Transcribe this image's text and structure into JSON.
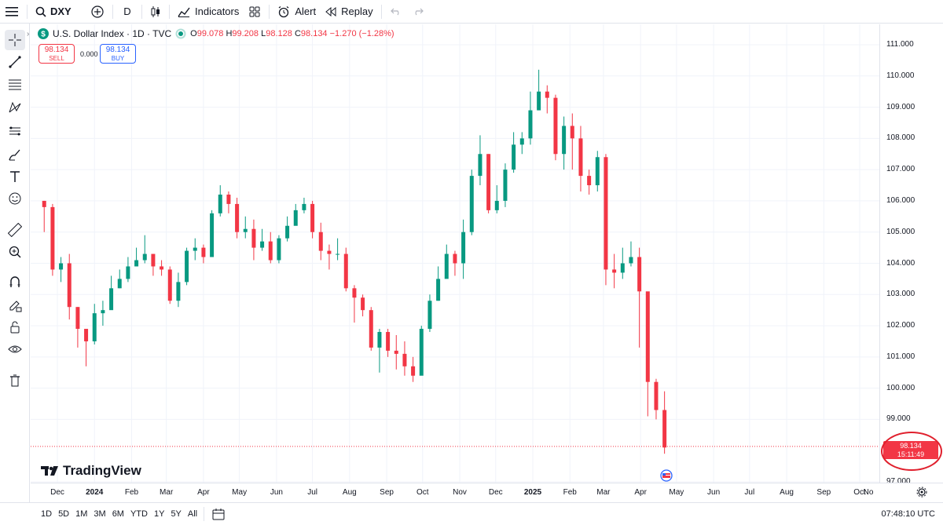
{
  "toolbar": {
    "symbol": "DXY",
    "interval": "D",
    "indicators_label": "Indicators",
    "alert_label": "Alert",
    "replay_label": "Replay"
  },
  "legend": {
    "title": "U.S. Dollar Index · 1D · TVC",
    "open_label": "O",
    "open": "99.078",
    "high_label": "H",
    "high": "99.208",
    "low_label": "L",
    "low": "98.128",
    "close_label": "C",
    "close": "98.134",
    "change": "−1.270 (−1.28%)"
  },
  "trade": {
    "sell_price": "98.134",
    "sell_label": "SELL",
    "spread": "0.000",
    "buy_price": "98.134",
    "buy_label": "BUY"
  },
  "watermark": "TradingView",
  "price_axis": [
    "111.000",
    "110.000",
    "109.000",
    "108.000",
    "107.000",
    "106.000",
    "105.000",
    "104.000",
    "103.000",
    "102.000",
    "101.000",
    "100.000",
    "99.000",
    "97.000"
  ],
  "last_price": {
    "price": "98.134",
    "countdown": "15:11:49"
  },
  "time_axis": [
    "Dec",
    "2024",
    "Feb",
    "Mar",
    "Apr",
    "May",
    "Jun",
    "Jul",
    "Aug",
    "Sep",
    "Oct",
    "Nov",
    "Dec",
    "2025",
    "Feb",
    "Mar",
    "Apr",
    "May",
    "Jun",
    "Jul",
    "Aug",
    "Sep",
    "Oct",
    "No"
  ],
  "ranges": [
    "1D",
    "5D",
    "1M",
    "3M",
    "6M",
    "YTD",
    "1Y",
    "5Y",
    "All"
  ],
  "clock": "07:48:10 UTC",
  "colors": {
    "up": "#089981",
    "down": "#f23645",
    "accent": "#2962ff"
  },
  "chart_data": {
    "type": "candlestick",
    "title": "U.S. Dollar Index · 1D · TVC",
    "xlabel": "",
    "ylabel": "",
    "ylim": [
      96.7,
      111.4
    ],
    "x": [
      "2023-11-20",
      "2023-11-27",
      "2023-12-04",
      "2023-12-11",
      "2023-12-18",
      "2023-12-25",
      "2024-01-01",
      "2024-01-08",
      "2024-01-15",
      "2024-01-22",
      "2024-01-29",
      "2024-02-05",
      "2024-02-12",
      "2024-02-19",
      "2024-02-26",
      "2024-03-04",
      "2024-03-11",
      "2024-03-18",
      "2024-03-25",
      "2024-04-01",
      "2024-04-08",
      "2024-04-15",
      "2024-04-22",
      "2024-04-29",
      "2024-05-06",
      "2024-05-13",
      "2024-05-20",
      "2024-05-27",
      "2024-06-03",
      "2024-06-10",
      "2024-06-17",
      "2024-06-24",
      "2024-07-01",
      "2024-07-08",
      "2024-07-15",
      "2024-07-22",
      "2024-07-29",
      "2024-08-05",
      "2024-08-12",
      "2024-08-19",
      "2024-08-26",
      "2024-09-02",
      "2024-09-09",
      "2024-09-16",
      "2024-09-23",
      "2024-09-30",
      "2024-10-07",
      "2024-10-14",
      "2024-10-21",
      "2024-10-28",
      "2024-11-04",
      "2024-11-11",
      "2024-11-18",
      "2024-11-25",
      "2024-12-02",
      "2024-12-09",
      "2024-12-16",
      "2024-12-23",
      "2024-12-30",
      "2025-01-06",
      "2025-01-13",
      "2025-01-20",
      "2025-01-27",
      "2025-02-03",
      "2025-02-10",
      "2025-02-17",
      "2025-02-24",
      "2025-03-03",
      "2025-03-10",
      "2025-03-17",
      "2025-03-24",
      "2025-03-31",
      "2025-04-07",
      "2025-04-14",
      "2025-04-21"
    ],
    "close": [
      105.8,
      103.8,
      104.0,
      102.6,
      101.9,
      101.5,
      102.4,
      102.5,
      103.2,
      103.5,
      103.9,
      104.1,
      104.3,
      103.9,
      103.8,
      102.8,
      103.4,
      104.4,
      104.5,
      104.2,
      105.6,
      106.2,
      105.9,
      105.0,
      105.1,
      104.5,
      104.7,
      104.1,
      104.8,
      105.2,
      105.7,
      105.9,
      105.0,
      104.4,
      104.3,
      104.3,
      103.2,
      102.9,
      102.5,
      101.3,
      101.8,
      101.2,
      101.1,
      100.7,
      100.4,
      101.9,
      102.8,
      103.5,
      104.3,
      104.0,
      105.0,
      106.8,
      107.5,
      105.7,
      106.0,
      107.0,
      107.8,
      108.0,
      108.9,
      109.5,
      109.3,
      107.5,
      108.4,
      108.0,
      106.8,
      106.5,
      107.4,
      103.8,
      103.7,
      104.0,
      104.2,
      103.1,
      100.2,
      99.3,
      98.1
    ],
    "high": [
      106.0,
      105.9,
      104.2,
      104.3,
      102.6,
      101.8,
      102.7,
      102.8,
      103.6,
      103.8,
      104.2,
      104.5,
      104.9,
      104.3,
      104.1,
      103.9,
      103.7,
      104.5,
      104.8,
      104.6,
      105.7,
      106.5,
      106.3,
      106.1,
      105.5,
      105.4,
      105.1,
      105.0,
      104.9,
      105.5,
      105.9,
      106.1,
      106.0,
      105.3,
      104.6,
      104.8,
      104.5,
      103.3,
      103.0,
      102.6,
      101.9,
      101.9,
      101.7,
      101.5,
      101.0,
      102.0,
      103.0,
      103.9,
      104.6,
      104.4,
      105.4,
      107.0,
      108.1,
      107.5,
      106.5,
      107.2,
      108.2,
      108.2,
      109.5,
      110.2,
      109.7,
      109.4,
      108.7,
      108.8,
      108.4,
      107.0,
      107.6,
      107.5,
      104.3,
      104.5,
      104.7,
      104.5,
      103.0,
      100.3,
      99.9
    ],
    "low": [
      105.0,
      103.6,
      103.4,
      102.2,
      101.3,
      100.7,
      101.4,
      102.0,
      102.9,
      103.2,
      103.4,
      103.9,
      104.0,
      103.6,
      103.6,
      102.7,
      102.6,
      103.3,
      104.1,
      104.0,
      104.3,
      105.5,
      105.6,
      104.8,
      104.8,
      104.1,
      104.4,
      104.0,
      104.0,
      104.7,
      105.3,
      105.6,
      104.8,
      104.1,
      103.8,
      104.1,
      103.1,
      102.1,
      102.3,
      101.2,
      100.5,
      101.0,
      100.6,
      100.4,
      100.2,
      100.6,
      101.8,
      102.8,
      103.9,
      103.6,
      103.5,
      104.9,
      106.5,
      105.6,
      105.6,
      105.8,
      106.9,
      107.5,
      107.8,
      108.9,
      108.8,
      107.3,
      107.0,
      107.0,
      106.3,
      106.2,
      106.3,
      103.3,
      103.2,
      103.5,
      103.9,
      101.3,
      99.1,
      99.0,
      97.9
    ],
    "last_price": 98.134
  }
}
